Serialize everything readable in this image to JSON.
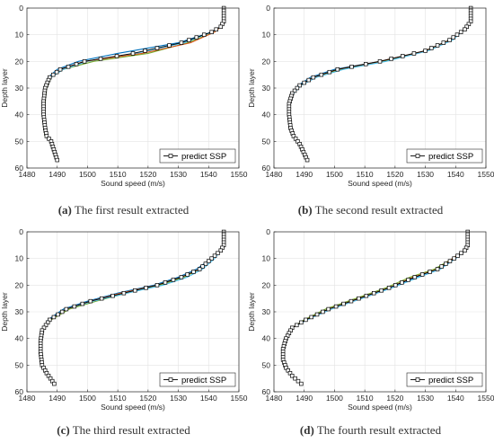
{
  "chart_data": [
    {
      "type": "line",
      "caption_label": "(a)",
      "caption_text": " The first result extracted",
      "xlabel": "Sound speed (m/s)",
      "ylabel": "Depth layer",
      "xlim": [
        1480,
        1550
      ],
      "ylim": [
        0,
        60
      ],
      "y_reversed": true,
      "xticks": [
        1480,
        1490,
        1500,
        1510,
        1520,
        1530,
        1540,
        1550
      ],
      "yticks": [
        0,
        10,
        20,
        30,
        40,
        50,
        60
      ],
      "legend": {
        "label": "predict SSP",
        "placement": "bottom-right"
      },
      "series": [
        {
          "color": "#0072bd",
          "x": [
            1545,
            1545,
            1545,
            1544,
            1541,
            1530,
            1510,
            1497,
            1490,
            1487,
            1486,
            1485.5,
            1485.5,
            1486,
            1486.5,
            1488,
            1490
          ],
          "y": [
            0,
            3,
            5,
            7,
            9,
            13,
            17,
            20,
            23,
            26,
            30,
            35,
            40,
            45,
            48,
            50,
            57
          ]
        },
        {
          "color": "#77ac30",
          "x": [
            1545,
            1545,
            1545,
            1544,
            1542,
            1533,
            1520,
            1502,
            1492,
            1488,
            1486.5,
            1486,
            1485.5,
            1485.5,
            1486,
            1488,
            1490
          ],
          "y": [
            0,
            3,
            5,
            7,
            9,
            13,
            17,
            20,
            23,
            26,
            30,
            35,
            40,
            45,
            48,
            50,
            57
          ]
        },
        {
          "color": "#4dbeee",
          "x": [
            1545,
            1545,
            1545,
            1544,
            1541,
            1532,
            1516,
            1500,
            1492,
            1488,
            1486,
            1485.5,
            1485.5,
            1486,
            1486.5,
            1488,
            1490
          ],
          "y": [
            0,
            3,
            5,
            7,
            9,
            13,
            17,
            20,
            23,
            26,
            30,
            35,
            40,
            45,
            48,
            50,
            57
          ]
        },
        {
          "color": "#d95319",
          "x": [
            1545,
            1545,
            1545,
            1544,
            1542,
            1534,
            1518,
            1499,
            1491,
            1487.5,
            1486,
            1485.5,
            1485.5,
            1486,
            1486.5,
            1488,
            1490
          ],
          "y": [
            0,
            3,
            5,
            7,
            9,
            13,
            17,
            20,
            23,
            26,
            30,
            35,
            40,
            45,
            48,
            50,
            57
          ]
        },
        {
          "name": "predict SSP",
          "color": "#000000",
          "markers": true,
          "x": [
            1545,
            1545,
            1545,
            1544,
            1541,
            1531,
            1515,
            1499,
            1491,
            1487.5,
            1486,
            1485.5,
            1485.5,
            1486,
            1486.5,
            1488,
            1490
          ],
          "y": [
            0,
            3,
            5,
            7,
            9,
            13,
            17,
            20,
            23,
            26,
            30,
            35,
            40,
            45,
            48,
            50,
            57
          ]
        }
      ]
    },
    {
      "type": "line",
      "caption_label": "(b)",
      "caption_text": " The second result extracted",
      "xlabel": "Sound speed (m/s)",
      "ylabel": "Depth layer",
      "xlim": [
        1480,
        1550
      ],
      "ylim": [
        0,
        60
      ],
      "y_reversed": true,
      "xticks": [
        1480,
        1490,
        1500,
        1510,
        1520,
        1530,
        1540,
        1550
      ],
      "yticks": [
        0,
        10,
        20,
        30,
        40,
        50,
        60
      ],
      "legend": {
        "label": "predict SSP",
        "placement": "bottom-right"
      },
      "series": [
        {
          "color": "#0072bd",
          "x": [
            1545,
            1545,
            1545,
            1543,
            1538,
            1530,
            1515,
            1500,
            1492,
            1488,
            1486,
            1485,
            1485,
            1485.5,
            1486.5,
            1488.5,
            1491
          ],
          "y": [
            0,
            3,
            5,
            8,
            12,
            16,
            20,
            23,
            26,
            29,
            32,
            36,
            40,
            45,
            48,
            51,
            57
          ]
        },
        {
          "color": "#77ac30",
          "x": [
            1545,
            1545,
            1545,
            1543,
            1538,
            1530,
            1516,
            1502,
            1493,
            1489,
            1486,
            1485,
            1485,
            1485.5,
            1486.5,
            1488.5,
            1491
          ],
          "y": [
            0,
            3,
            5,
            8,
            12,
            16,
            20,
            23,
            26,
            29,
            32,
            36,
            40,
            45,
            48,
            51,
            57
          ]
        },
        {
          "color": "#4dbeee",
          "x": [
            1545,
            1545,
            1545,
            1543,
            1539,
            1531,
            1517,
            1503,
            1494,
            1489,
            1486.5,
            1485,
            1485,
            1485.5,
            1486.5,
            1488.5,
            1491
          ],
          "y": [
            0,
            3,
            5,
            8,
            12,
            16,
            20,
            23,
            26,
            29,
            32,
            36,
            40,
            45,
            48,
            51,
            57
          ]
        },
        {
          "color": "#d95319",
          "x": [
            1545,
            1545,
            1545,
            1543,
            1538,
            1530,
            1515,
            1501,
            1493,
            1488.5,
            1486,
            1485,
            1485,
            1485.5,
            1486.5,
            1488.5,
            1491
          ],
          "y": [
            0,
            3,
            5,
            8,
            12,
            16,
            20,
            23,
            26,
            29,
            32,
            36,
            40,
            45,
            48,
            51,
            57
          ]
        },
        {
          "name": "predict SSP",
          "color": "#000000",
          "markers": true,
          "x": [
            1545,
            1545,
            1545,
            1543,
            1538,
            1530,
            1515,
            1501,
            1493,
            1488.5,
            1486,
            1485,
            1485,
            1485.5,
            1486.5,
            1488.5,
            1491
          ],
          "y": [
            0,
            3,
            5,
            8,
            12,
            16,
            20,
            23,
            26,
            29,
            32,
            36,
            40,
            45,
            48,
            51,
            57
          ]
        }
      ]
    },
    {
      "type": "line",
      "caption_label": "(c)",
      "caption_text": " The third result extracted",
      "xlabel": "Sound speed (m/s)",
      "ylabel": "Depth layer",
      "xlim": [
        1480,
        1550
      ],
      "ylim": [
        0,
        60
      ],
      "y_reversed": true,
      "xticks": [
        1480,
        1490,
        1500,
        1510,
        1520,
        1530,
        1540,
        1550
      ],
      "yticks": [
        0,
        10,
        20,
        30,
        40,
        50,
        60
      ],
      "legend": {
        "label": "predict SSP",
        "placement": "bottom-right"
      },
      "series": [
        {
          "color": "#0072bd",
          "x": [
            1545,
            1545,
            1545,
            1544,
            1541,
            1536,
            1530,
            1522,
            1510,
            1500,
            1492,
            1487,
            1485,
            1484.5,
            1484.5,
            1485,
            1486.5,
            1489
          ],
          "y": [
            0,
            3,
            5,
            7,
            10,
            14,
            17,
            20,
            23,
            26,
            29,
            33,
            37,
            41,
            45,
            50,
            53,
            57
          ]
        },
        {
          "color": "#77ac30",
          "x": [
            1545,
            1545,
            1545,
            1544,
            1541,
            1537,
            1532,
            1524,
            1513,
            1503,
            1494,
            1488,
            1485,
            1484.5,
            1484.5,
            1485,
            1486.5,
            1489
          ],
          "y": [
            0,
            3,
            5,
            7,
            10,
            14,
            17,
            20,
            23,
            26,
            29,
            33,
            37,
            41,
            45,
            50,
            53,
            57
          ]
        },
        {
          "color": "#4dbeee",
          "x": [
            1545,
            1545,
            1545,
            1544,
            1542,
            1538,
            1533,
            1525,
            1513,
            1502,
            1493,
            1487.5,
            1485,
            1484.5,
            1484.5,
            1485,
            1486.5,
            1489
          ],
          "y": [
            0,
            3,
            5,
            7,
            10,
            14,
            17,
            20,
            23,
            26,
            29,
            33,
            37,
            41,
            45,
            50,
            53,
            57
          ]
        },
        {
          "color": "#d95319",
          "x": [
            1545,
            1545,
            1545,
            1544,
            1541,
            1537,
            1531,
            1523,
            1511,
            1501,
            1493,
            1487.5,
            1485,
            1484.5,
            1484.5,
            1485,
            1486.5,
            1489
          ],
          "y": [
            0,
            3,
            5,
            7,
            10,
            14,
            17,
            20,
            23,
            26,
            29,
            33,
            37,
            41,
            45,
            50,
            53,
            57
          ]
        },
        {
          "name": "predict SSP",
          "color": "#000000",
          "markers": true,
          "x": [
            1545,
            1545,
            1545,
            1544,
            1541,
            1537,
            1531,
            1523,
            1512,
            1501,
            1493,
            1487.5,
            1485,
            1484.5,
            1484.5,
            1485,
            1486.5,
            1489
          ],
          "y": [
            0,
            3,
            5,
            7,
            10,
            14,
            17,
            20,
            23,
            26,
            29,
            33,
            37,
            41,
            45,
            50,
            53,
            57
          ]
        }
      ]
    },
    {
      "type": "line",
      "caption_label": "(d)",
      "caption_text": " The fourth result extracted",
      "xlabel": "Sound speed (m/s)",
      "ylabel": "Depth layer",
      "xlim": [
        1480,
        1550
      ],
      "ylim": [
        0,
        60
      ],
      "y_reversed": true,
      "xticks": [
        1480,
        1490,
        1500,
        1510,
        1520,
        1530,
        1540,
        1550
      ],
      "yticks": [
        0,
        10,
        20,
        30,
        40,
        50,
        60
      ],
      "legend": {
        "label": "predict SSP",
        "placement": "bottom-right"
      },
      "series": [
        {
          "color": "#0072bd",
          "x": [
            1544,
            1544,
            1544,
            1543,
            1540,
            1534,
            1527,
            1518,
            1508,
            1498,
            1490,
            1486,
            1484,
            1483,
            1483,
            1484,
            1486,
            1489
          ],
          "y": [
            0,
            3,
            5,
            7,
            10,
            14,
            17,
            21,
            25,
            29,
            33,
            36,
            40,
            44,
            48,
            51,
            54,
            57
          ]
        },
        {
          "color": "#77ac30",
          "x": [
            1544,
            1544,
            1544,
            1543,
            1539,
            1533,
            1525,
            1517,
            1507,
            1497,
            1490,
            1486,
            1484,
            1483,
            1483,
            1484,
            1486,
            1489
          ],
          "y": [
            0,
            3,
            5,
            7,
            10,
            14,
            17,
            21,
            25,
            29,
            33,
            36,
            40,
            44,
            48,
            51,
            54,
            57
          ]
        },
        {
          "color": "#4dbeee",
          "x": [
            1544,
            1544,
            1544,
            1543,
            1540,
            1535,
            1528,
            1519,
            1509,
            1499,
            1491,
            1486,
            1484,
            1483,
            1483,
            1484,
            1486,
            1489
          ],
          "y": [
            0,
            3,
            5,
            7,
            10,
            14,
            17,
            21,
            25,
            29,
            33,
            36,
            40,
            44,
            48,
            51,
            54,
            57
          ]
        },
        {
          "color": "#d95319",
          "x": [
            1544,
            1544,
            1544,
            1543,
            1539,
            1534,
            1526,
            1518,
            1508,
            1498,
            1490.5,
            1486,
            1484,
            1483,
            1483,
            1484,
            1486,
            1489
          ],
          "y": [
            0,
            3,
            5,
            7,
            10,
            14,
            17,
            21,
            25,
            29,
            33,
            36,
            40,
            44,
            48,
            51,
            54,
            57
          ]
        },
        {
          "name": "predict SSP",
          "color": "#000000",
          "markers": true,
          "x": [
            1544,
            1544,
            1544,
            1543,
            1539.5,
            1534,
            1526.5,
            1518,
            1508,
            1498,
            1490.5,
            1486,
            1484,
            1483,
            1483,
            1484,
            1486,
            1489
          ],
          "y": [
            0,
            3,
            5,
            7,
            10,
            14,
            17,
            21,
            25,
            29,
            33,
            36,
            40,
            44,
            48,
            51,
            54,
            57
          ]
        }
      ]
    }
  ]
}
